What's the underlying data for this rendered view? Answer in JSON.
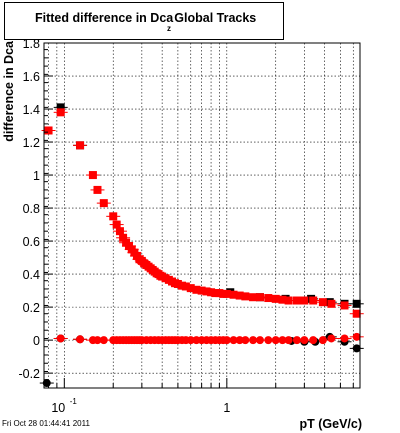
{
  "title": "Fitted difference in Dca",
  "title_subscript": "z",
  "title_suffix": "Global Tracks",
  "timestamp": "Fri Oct 28 01:44:41 2011",
  "colors": {
    "series_black": "#000000",
    "series_red": "#ff0000",
    "grid": "#000000"
  },
  "chart_data": {
    "type": "scatter",
    "title": "Fitted difference in Dca z Global Tracks",
    "xlabel": "pT (GeV/c)",
    "ylabel": "difference in Dca",
    "xscale": "log",
    "xlim": [
      0.075,
      6.6
    ],
    "ylim": [
      -0.29,
      1.8
    ],
    "grid": true,
    "xtick_labels": [
      {
        "value": 0.1,
        "base": "10",
        "exp": "-1"
      },
      {
        "value": 1,
        "base": "1",
        "exp": ""
      }
    ],
    "yticks": [
      -0.2,
      0,
      0.2,
      0.4,
      0.6,
      0.8,
      1,
      1.2,
      1.4,
      1.6,
      1.8
    ],
    "ytick_labels": [
      "-0.2",
      "0",
      "0.2",
      "0.4",
      "0.6",
      "0.8",
      "1",
      "1.2",
      "1.4",
      "1.6",
      "1.8"
    ],
    "series": [
      {
        "marker": "square",
        "color": "#000000",
        "points": [
          [
            0.095,
            1.41
          ],
          [
            0.125,
            1.18
          ],
          [
            1.05,
            0.29
          ],
          [
            1.6,
            0.26
          ],
          [
            2.3,
            0.25
          ],
          [
            3.3,
            0.25
          ],
          [
            4.3,
            0.23
          ],
          [
            5.3,
            0.22
          ],
          [
            6.3,
            0.22
          ]
        ]
      },
      {
        "marker": "square",
        "color": "#ff0000",
        "points": [
          [
            0.08,
            1.27
          ],
          [
            0.095,
            1.38
          ],
          [
            0.125,
            1.18
          ],
          [
            0.15,
            1.0
          ],
          [
            0.16,
            0.91
          ],
          [
            0.175,
            0.83
          ],
          [
            0.2,
            0.75
          ],
          [
            0.21,
            0.7
          ],
          [
            0.22,
            0.66
          ],
          [
            0.23,
            0.62
          ],
          [
            0.24,
            0.59
          ],
          [
            0.25,
            0.57
          ],
          [
            0.26,
            0.55
          ],
          [
            0.27,
            0.53
          ],
          [
            0.28,
            0.51
          ],
          [
            0.29,
            0.49
          ],
          [
            0.3,
            0.48
          ],
          [
            0.31,
            0.465
          ],
          [
            0.32,
            0.455
          ],
          [
            0.33,
            0.445
          ],
          [
            0.34,
            0.435
          ],
          [
            0.35,
            0.425
          ],
          [
            0.36,
            0.415
          ],
          [
            0.37,
            0.405
          ],
          [
            0.38,
            0.4
          ],
          [
            0.39,
            0.39
          ],
          [
            0.4,
            0.385
          ],
          [
            0.42,
            0.375
          ],
          [
            0.44,
            0.365
          ],
          [
            0.46,
            0.355
          ],
          [
            0.48,
            0.345
          ],
          [
            0.5,
            0.34
          ],
          [
            0.53,
            0.33
          ],
          [
            0.56,
            0.325
          ],
          [
            0.6,
            0.315
          ],
          [
            0.65,
            0.305
          ],
          [
            0.7,
            0.3
          ],
          [
            0.75,
            0.295
          ],
          [
            0.8,
            0.29
          ],
          [
            0.85,
            0.285
          ],
          [
            0.9,
            0.285
          ],
          [
            0.95,
            0.28
          ],
          [
            1.0,
            0.28
          ],
          [
            1.1,
            0.275
          ],
          [
            1.2,
            0.27
          ],
          [
            1.3,
            0.265
          ],
          [
            1.45,
            0.26
          ],
          [
            1.6,
            0.26
          ],
          [
            1.8,
            0.255
          ],
          [
            2.0,
            0.25
          ],
          [
            2.2,
            0.245
          ],
          [
            2.4,
            0.24
          ],
          [
            2.7,
            0.24
          ],
          [
            3.0,
            0.24
          ],
          [
            3.4,
            0.24
          ],
          [
            3.9,
            0.23
          ],
          [
            4.4,
            0.22
          ],
          [
            5.3,
            0.21
          ],
          [
            6.3,
            0.16
          ]
        ]
      },
      {
        "marker": "circle",
        "color": "#000000",
        "points": [
          [
            0.078,
            -0.26
          ],
          [
            0.095,
            0.01
          ],
          [
            0.125,
            0.005
          ],
          [
            2.5,
            -0.005
          ],
          [
            3.0,
            -0.01
          ],
          [
            3.5,
            -0.01
          ],
          [
            4.3,
            0.02
          ],
          [
            5.3,
            -0.01
          ],
          [
            6.3,
            -0.05
          ]
        ]
      },
      {
        "marker": "circle",
        "color": "#ff0000",
        "points": [
          [
            0.095,
            0.01
          ],
          [
            0.125,
            0.005
          ],
          [
            0.15,
            0.0
          ],
          [
            0.16,
            0.0
          ],
          [
            0.175,
            0.0
          ],
          [
            0.2,
            0.0
          ],
          [
            0.21,
            0.0
          ],
          [
            0.22,
            0.0
          ],
          [
            0.23,
            0.0
          ],
          [
            0.24,
            0.0
          ],
          [
            0.25,
            0.0
          ],
          [
            0.26,
            0.0
          ],
          [
            0.27,
            0.0
          ],
          [
            0.28,
            0.0
          ],
          [
            0.29,
            0.0
          ],
          [
            0.3,
            0.0
          ],
          [
            0.32,
            0.0
          ],
          [
            0.34,
            0.0
          ],
          [
            0.36,
            0.0
          ],
          [
            0.38,
            0.0
          ],
          [
            0.4,
            0.0
          ],
          [
            0.42,
            0.0
          ],
          [
            0.44,
            0.0
          ],
          [
            0.46,
            0.0
          ],
          [
            0.48,
            0.0
          ],
          [
            0.5,
            0.0
          ],
          [
            0.53,
            0.0
          ],
          [
            0.56,
            0.0
          ],
          [
            0.6,
            0.0
          ],
          [
            0.65,
            0.0
          ],
          [
            0.7,
            0.0
          ],
          [
            0.75,
            0.0
          ],
          [
            0.8,
            0.0
          ],
          [
            0.85,
            0.0
          ],
          [
            0.9,
            0.0
          ],
          [
            0.95,
            0.0
          ],
          [
            1.0,
            0.0
          ],
          [
            1.1,
            0.0
          ],
          [
            1.2,
            0.0
          ],
          [
            1.3,
            0.0
          ],
          [
            1.45,
            0.0
          ],
          [
            1.6,
            0.0
          ],
          [
            1.8,
            0.0
          ],
          [
            2.0,
            0.0
          ],
          [
            2.2,
            0.0
          ],
          [
            2.4,
            0.0
          ],
          [
            2.7,
            0.0
          ],
          [
            3.0,
            0.0
          ],
          [
            3.4,
            0.0
          ],
          [
            3.9,
            0.0
          ],
          [
            4.4,
            0.01
          ],
          [
            5.3,
            0.01
          ],
          [
            6.3,
            0.02
          ]
        ]
      }
    ]
  }
}
